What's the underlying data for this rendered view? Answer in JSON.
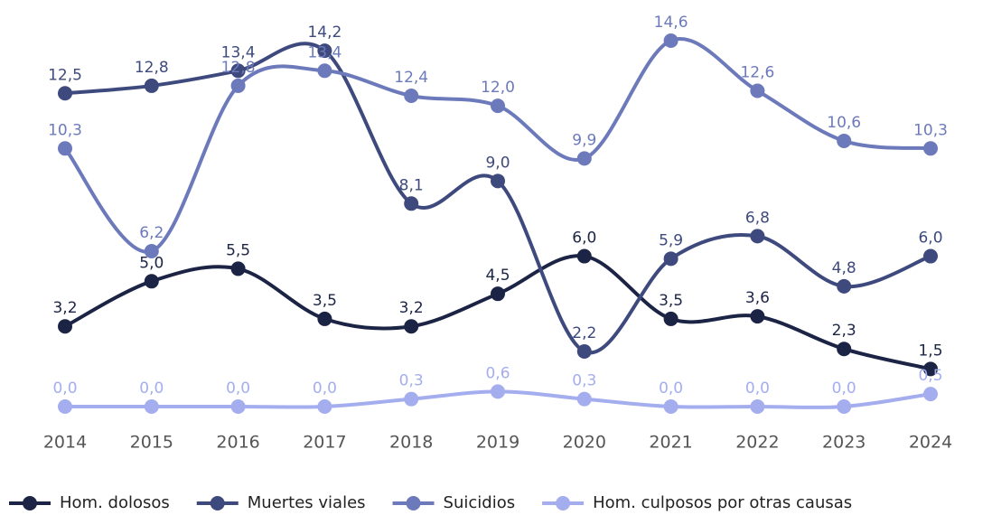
{
  "chart_data": {
    "type": "line",
    "categories": [
      "2014",
      "2015",
      "2016",
      "2017",
      "2018",
      "2019",
      "2020",
      "2021",
      "2022",
      "2023",
      "2024"
    ],
    "series": [
      {
        "name": "Hom. dolosos",
        "color": "#1c2445",
        "values": [
          3.2,
          5.0,
          5.5,
          3.5,
          3.2,
          4.5,
          6.0,
          3.5,
          3.6,
          2.3,
          1.5
        ],
        "value_labels": [
          "3,2",
          "5,0",
          "5,5",
          "3,5",
          "3,2",
          "4,5",
          "6,0",
          "3,5",
          "3,6",
          "2,3",
          "1,5"
        ]
      },
      {
        "name": "Muertes viales",
        "color": "#3e4a7d",
        "values": [
          12.5,
          12.8,
          13.4,
          14.2,
          8.1,
          9.0,
          2.2,
          5.9,
          6.8,
          4.8,
          6.0
        ],
        "value_labels": [
          "12,5",
          "12,8",
          "13,4",
          "14,2",
          "8,1",
          "9,0",
          "2,2",
          "5,9",
          "6,8",
          "4,8",
          "6,0"
        ]
      },
      {
        "name": "Suicidios",
        "color": "#6c7abb",
        "values": [
          10.3,
          6.2,
          12.8,
          13.4,
          12.4,
          12.0,
          9.9,
          14.6,
          12.6,
          10.6,
          10.3
        ],
        "value_labels": [
          "10,3",
          "6,2",
          "12,8",
          "13,4",
          "12,4",
          "12,0",
          "9,9",
          "14,6",
          "12,6",
          "10,6",
          "10,3"
        ]
      },
      {
        "name": "Hom. culposos por otras causas",
        "color": "#a4adee",
        "values": [
          0.0,
          0.0,
          0.0,
          0.0,
          0.3,
          0.6,
          0.3,
          0.0,
          0.0,
          0.0,
          0.5
        ],
        "value_labels": [
          "0,0",
          "0,0",
          "0,0",
          "0,0",
          "0,3",
          "0,6",
          "0,3",
          "0,0",
          "0,0",
          "0,0",
          "0,5"
        ]
      }
    ],
    "legend": "bottom"
  }
}
